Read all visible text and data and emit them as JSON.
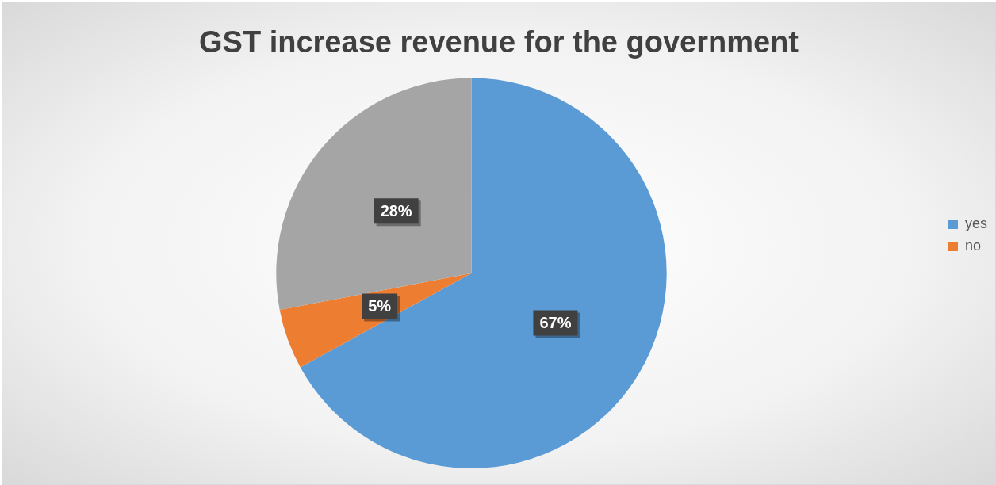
{
  "chart_data": {
    "type": "pie",
    "title": "GST increase revenue for the government",
    "categories": [
      "yes",
      "no",
      null
    ],
    "values": [
      67,
      5,
      28
    ],
    "colors": [
      "#5b9bd5",
      "#ed7d31",
      "#a5a5a5"
    ],
    "value_labels": [
      "67%",
      "5%",
      "28%"
    ],
    "legend": "right"
  }
}
